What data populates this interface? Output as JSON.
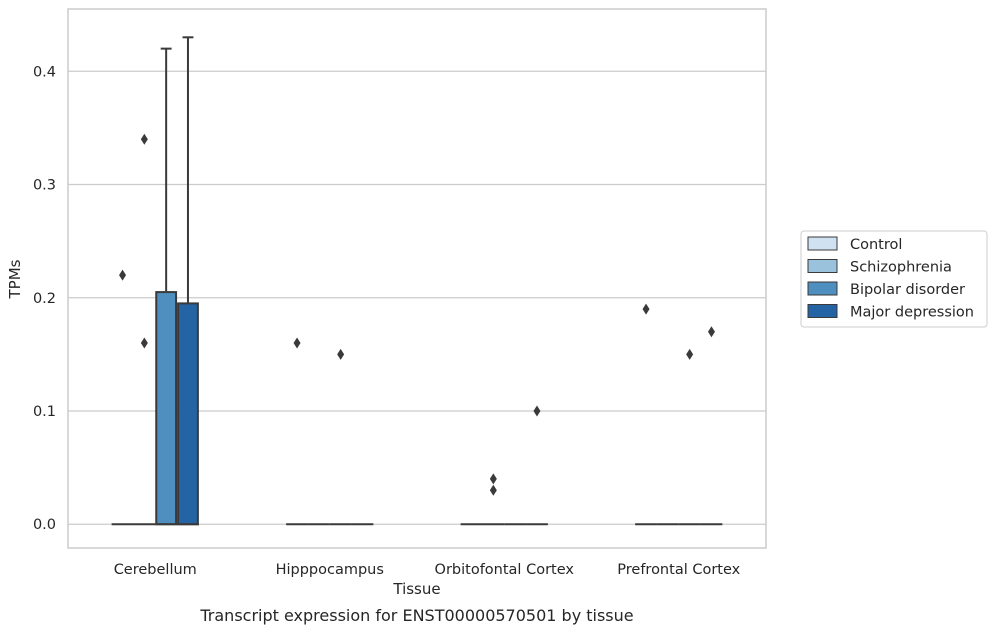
{
  "chart_data": {
    "type": "box",
    "caption": "Transcript expression for ENST00000570501 by tissue",
    "xlabel": "Tissue",
    "ylabel": "TPMs",
    "ylim": [
      -0.021,
      0.455
    ],
    "yticks": [
      0.0,
      0.1,
      0.2,
      0.3,
      0.4
    ],
    "ytick_labels": [
      "0.0",
      "0.1",
      "0.2",
      "0.3",
      "0.4"
    ],
    "grid": true,
    "legend_position": "right",
    "categories": [
      "Cerebellum",
      "Hipppocampus",
      "Orbitofontal Cortex",
      "Prefrontal Cortex"
    ],
    "series": [
      {
        "name": "Control",
        "color": "#d0e1f2",
        "boxes": [
          {
            "q1": 0,
            "median": 0,
            "q3": 0,
            "whisker_low": 0,
            "whisker_high": 0,
            "outliers": [
              0.22
            ]
          },
          {
            "q1": 0,
            "median": 0,
            "q3": 0,
            "whisker_low": 0,
            "whisker_high": 0,
            "outliers": [
              0.16
            ]
          },
          {
            "q1": 0,
            "median": 0,
            "q3": 0,
            "whisker_low": 0,
            "whisker_high": 0,
            "outliers": []
          },
          {
            "q1": 0,
            "median": 0,
            "q3": 0,
            "whisker_low": 0,
            "whisker_high": 0,
            "outliers": [
              0.19
            ]
          }
        ]
      },
      {
        "name": "Schizophrenia",
        "color": "#9ac2dc",
        "boxes": [
          {
            "q1": 0,
            "median": 0,
            "q3": 0,
            "whisker_low": 0,
            "whisker_high": 0,
            "outliers": [
              0.16,
              0.34
            ]
          },
          {
            "q1": 0,
            "median": 0,
            "q3": 0,
            "whisker_low": 0,
            "whisker_high": 0,
            "outliers": []
          },
          {
            "q1": 0,
            "median": 0,
            "q3": 0,
            "whisker_low": 0,
            "whisker_high": 0,
            "outliers": [
              0.03,
              0.04
            ]
          },
          {
            "q1": 0,
            "median": 0,
            "q3": 0,
            "whisker_low": 0,
            "whisker_high": 0,
            "outliers": []
          }
        ]
      },
      {
        "name": "Bipolar disorder",
        "color": "#4f8fbf",
        "boxes": [
          {
            "q1": 0,
            "median": 0,
            "q3": 0.205,
            "whisker_low": 0,
            "whisker_high": 0.42,
            "outliers": []
          },
          {
            "q1": 0,
            "median": 0,
            "q3": 0,
            "whisker_low": 0,
            "whisker_high": 0,
            "outliers": [
              0.15
            ]
          },
          {
            "q1": 0,
            "median": 0,
            "q3": 0,
            "whisker_low": 0,
            "whisker_high": 0,
            "outliers": []
          },
          {
            "q1": 0,
            "median": 0,
            "q3": 0,
            "whisker_low": 0,
            "whisker_high": 0,
            "outliers": [
              0.15
            ]
          }
        ]
      },
      {
        "name": "Major depression",
        "color": "#2463a4",
        "boxes": [
          {
            "q1": 0,
            "median": 0,
            "q3": 0.195,
            "whisker_low": 0,
            "whisker_high": 0.43,
            "outliers": []
          },
          {
            "q1": 0,
            "median": 0,
            "q3": 0,
            "whisker_low": 0,
            "whisker_high": 0,
            "outliers": []
          },
          {
            "q1": 0,
            "median": 0,
            "q3": 0,
            "whisker_low": 0,
            "whisker_high": 0,
            "outliers": [
              0.1
            ]
          },
          {
            "q1": 0,
            "median": 0,
            "q3": 0,
            "whisker_low": 0,
            "whisker_high": 0,
            "outliers": [
              0.17
            ]
          }
        ]
      }
    ]
  },
  "style": {
    "grid_color": "#cccccc",
    "edge_color": "#3a3a3a",
    "frame_color": "#cccccc"
  }
}
